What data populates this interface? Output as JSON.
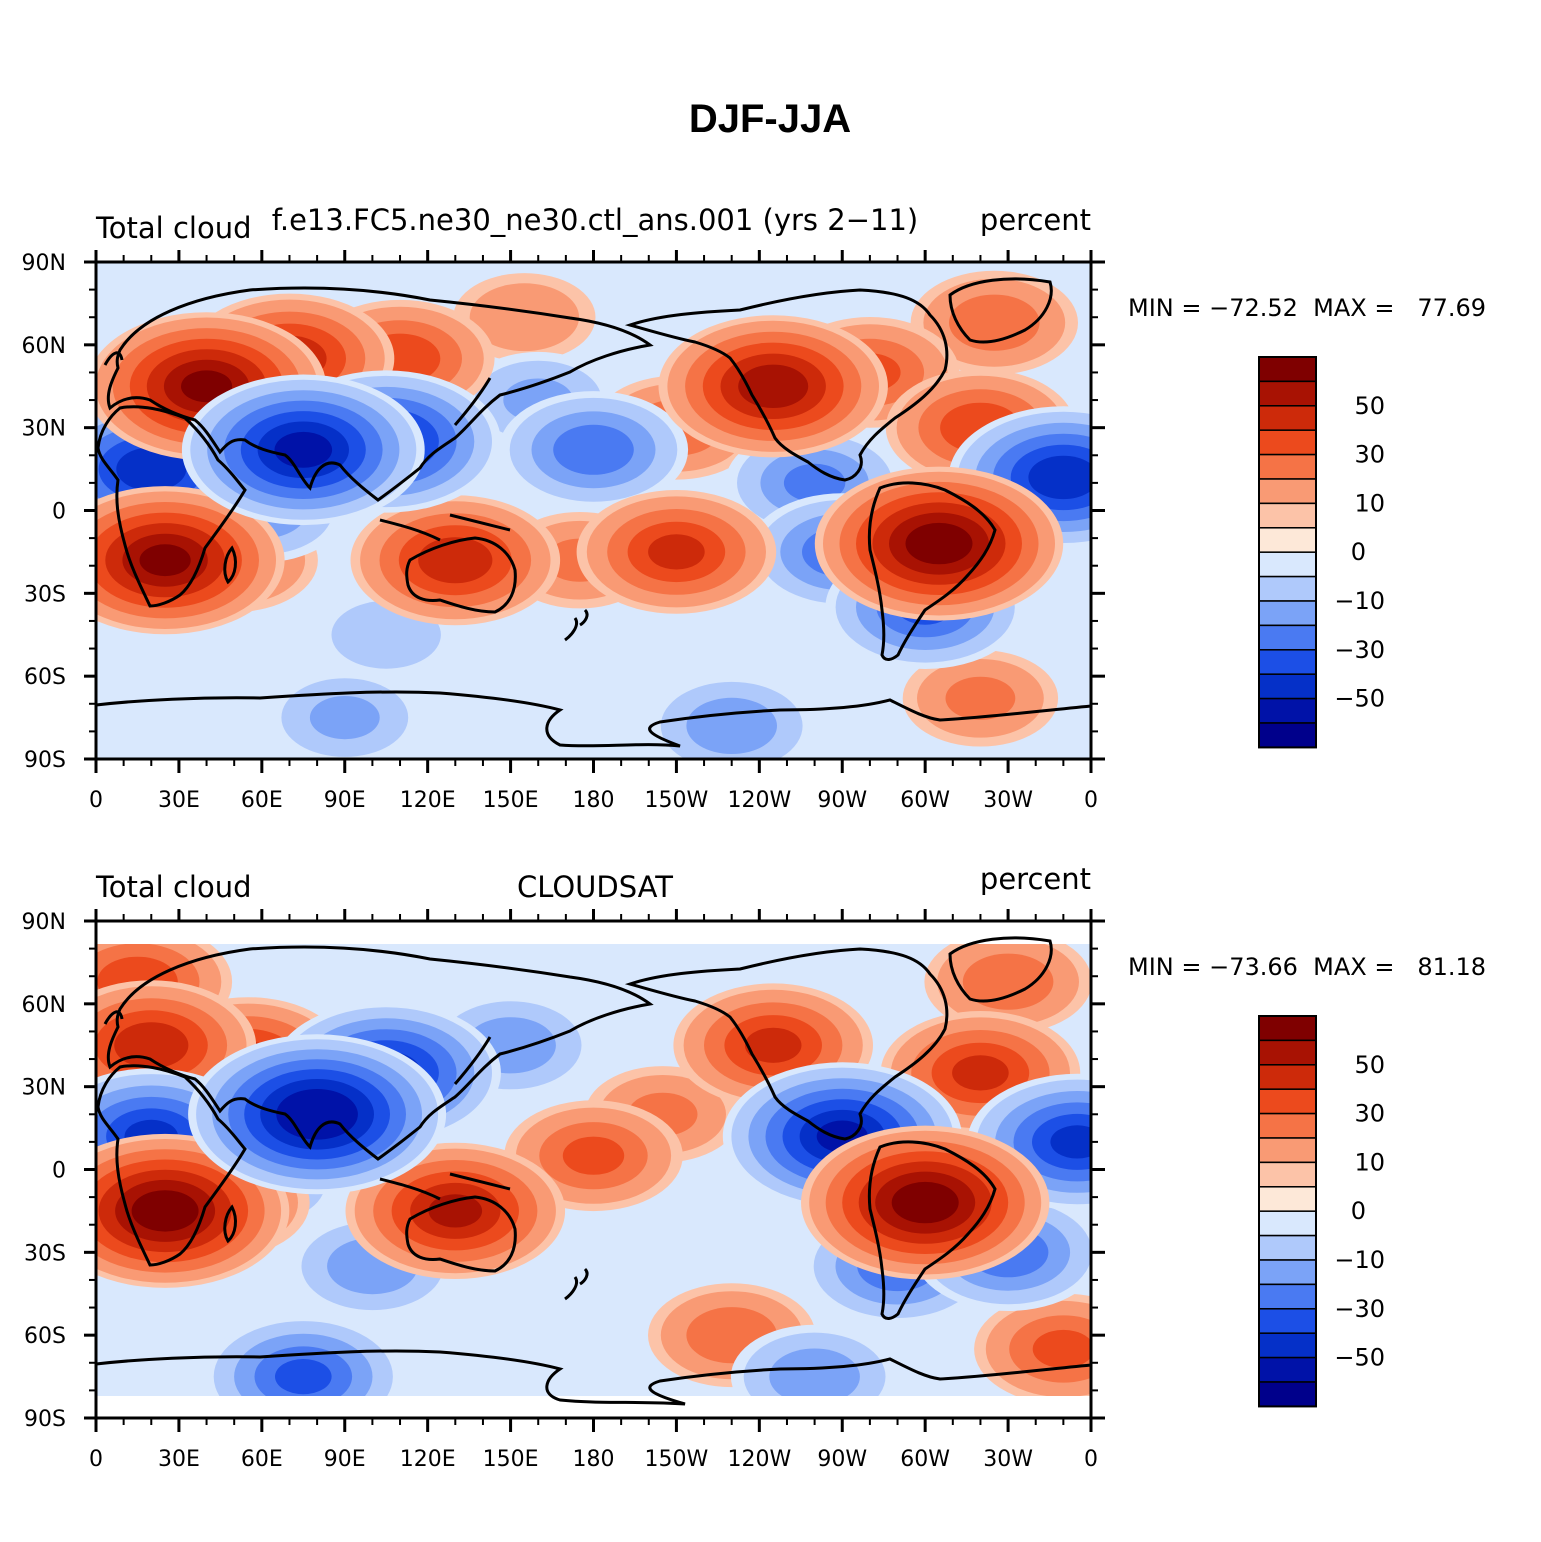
{
  "figure": {
    "title": "DJF-JJA"
  },
  "colors": {
    "levels": [
      "#00008b",
      "#0012a8",
      "#0530c8",
      "#1c4fe6",
      "#4a7af2",
      "#7ba3f7",
      "#afc9fb",
      "#d9e8fd",
      "#fde8d8",
      "#fcc3a8",
      "#f99a74",
      "#f57346",
      "#ec4a1d",
      "#cd2a0a",
      "#a81203",
      "#7f0000"
    ],
    "coast": "#000000"
  },
  "colorbar": {
    "labels": [
      "50",
      "30",
      "10",
      "0",
      "−10",
      "−30",
      "−50"
    ]
  },
  "axes": {
    "lat_labels": [
      "90N",
      "60N",
      "30N",
      "0",
      "30S",
      "60S",
      "90S"
    ],
    "lon_labels": [
      "0",
      "30E",
      "60E",
      "90E",
      "120E",
      "150E",
      "180",
      "150W",
      "120W",
      "90W",
      "60W",
      "30W",
      "0"
    ]
  },
  "panels": [
    {
      "left_label": "Total cloud",
      "center_label": "f.e13.FC5.ne30_ne30.ctl_ans.001 (yrs 2−11)",
      "right_label": "percent",
      "stats": "MIN = −72.52  MAX =   77.69"
    },
    {
      "left_label": "Total cloud",
      "center_label": "CLOUDSAT",
      "right_label": "percent",
      "stats": "MIN = −73.66  MAX =   81.18"
    }
  ],
  "chart_data": [
    {
      "type": "heatmap",
      "title": "DJF-JJA",
      "subtitle": "f.e13.FC5.ne30_ne30.ctl_ans.001 (yrs 2−11)",
      "variable": "Total cloud",
      "units": "percent",
      "x_range": [
        0,
        360
      ],
      "y_range": [
        -90,
        90
      ],
      "min": -72.52,
      "max": 77.69,
      "contour_levels": [
        -70,
        -60,
        -50,
        -40,
        -30,
        -20,
        -10,
        -5,
        0,
        5,
        10,
        20,
        30,
        40,
        50,
        60,
        70
      ],
      "colorbar_labels": [
        "50",
        "30",
        "10",
        "0",
        "−10",
        "−30",
        "−50"
      ],
      "features": [
        {
          "lon": 40,
          "lat": 45,
          "value": 60
        },
        {
          "lon": 70,
          "lat": 55,
          "value": 45
        },
        {
          "lon": 110,
          "lat": 55,
          "value": 35
        },
        {
          "lon": 25,
          "lat": -18,
          "value": 60
        },
        {
          "lon": 50,
          "lat": -18,
          "value": 25
        },
        {
          "lon": 130,
          "lat": -18,
          "value": 45
        },
        {
          "lon": 175,
          "lat": -18,
          "value": 20
        },
        {
          "lon": 210,
          "lat": -15,
          "value": 40
        },
        {
          "lon": 305,
          "lat": -12,
          "value": 65
        },
        {
          "lon": 245,
          "lat": 45,
          "value": 55
        },
        {
          "lon": 280,
          "lat": 50,
          "value": 30
        },
        {
          "lon": 320,
          "lat": 30,
          "value": 35
        },
        {
          "lon": 325,
          "lat": 68,
          "value": 25
        },
        {
          "lon": 210,
          "lat": 30,
          "value": 25
        },
        {
          "lon": 155,
          "lat": 70,
          "value": 15
        },
        {
          "lon": 320,
          "lat": -68,
          "value": 20
        },
        {
          "lon": 20,
          "lat": 15,
          "value": -55
        },
        {
          "lon": 75,
          "lat": 22,
          "value": -62
        },
        {
          "lon": 105,
          "lat": 25,
          "value": -55
        },
        {
          "lon": 350,
          "lat": 12,
          "value": -55
        },
        {
          "lon": 180,
          "lat": 22,
          "value": -35
        },
        {
          "lon": 160,
          "lat": 40,
          "value": -20
        },
        {
          "lon": 260,
          "lat": 10,
          "value": -30
        },
        {
          "lon": 270,
          "lat": -15,
          "value": -35
        },
        {
          "lon": 300,
          "lat": -35,
          "value": -40
        },
        {
          "lon": 105,
          "lat": -45,
          "value": -15
        },
        {
          "lon": 90,
          "lat": -75,
          "value": -20
        },
        {
          "lon": 230,
          "lat": -78,
          "value": -25
        },
        {
          "lon": 60,
          "lat": 0,
          "value": -25
        }
      ]
    },
    {
      "type": "heatmap",
      "title": "DJF-JJA",
      "subtitle": "CLOUDSAT",
      "variable": "Total cloud",
      "units": "percent",
      "x_range": [
        0,
        360
      ],
      "y_range": [
        -90,
        90
      ],
      "data_lat_range": [
        -82,
        82
      ],
      "min": -73.66,
      "max": 81.18,
      "contour_levels": [
        -70,
        -60,
        -50,
        -40,
        -30,
        -20,
        -10,
        -5,
        0,
        5,
        10,
        20,
        30,
        40,
        50,
        60,
        70
      ],
      "colorbar_labels": [
        "50",
        "30",
        "10",
        "0",
        "−10",
        "−30",
        "−50"
      ],
      "features": [
        {
          "lon": 20,
          "lat": 45,
          "value": 45
        },
        {
          "lon": 55,
          "lat": 40,
          "value": 40
        },
        {
          "lon": 15,
          "lat": 68,
          "value": 35
        },
        {
          "lon": 25,
          "lat": -15,
          "value": 65
        },
        {
          "lon": 45,
          "lat": -12,
          "value": 30
        },
        {
          "lon": 130,
          "lat": -15,
          "value": 50
        },
        {
          "lon": 180,
          "lat": 5,
          "value": 30
        },
        {
          "lon": 205,
          "lat": 20,
          "value": 20
        },
        {
          "lon": 300,
          "lat": -12,
          "value": 65
        },
        {
          "lon": 245,
          "lat": 45,
          "value": 40
        },
        {
          "lon": 320,
          "lat": 35,
          "value": 40
        },
        {
          "lon": 330,
          "lat": 68,
          "value": 25
        },
        {
          "lon": 350,
          "lat": -65,
          "value": 30
        },
        {
          "lon": 230,
          "lat": -60,
          "value": 25
        },
        {
          "lon": 80,
          "lat": 20,
          "value": -70
        },
        {
          "lon": 105,
          "lat": 35,
          "value": -55
        },
        {
          "lon": 20,
          "lat": 12,
          "value": -50
        },
        {
          "lon": 270,
          "lat": 12,
          "value": -60
        },
        {
          "lon": 355,
          "lat": 10,
          "value": -50
        },
        {
          "lon": 290,
          "lat": -35,
          "value": -35
        },
        {
          "lon": 330,
          "lat": -30,
          "value": -35
        },
        {
          "lon": 75,
          "lat": -75,
          "value": -40
        },
        {
          "lon": 260,
          "lat": -75,
          "value": -25
        },
        {
          "lon": 100,
          "lat": -35,
          "value": -25
        },
        {
          "lon": 150,
          "lat": 45,
          "value": -25
        },
        {
          "lon": 60,
          "lat": -5,
          "value": -20
        }
      ]
    }
  ]
}
